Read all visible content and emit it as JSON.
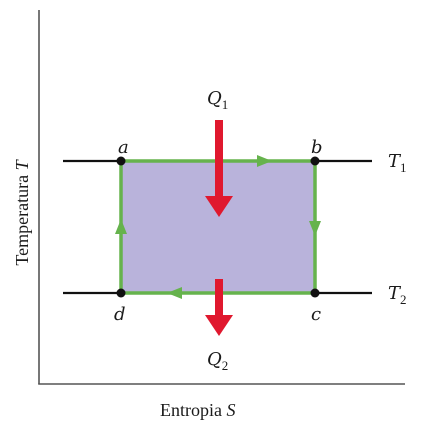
{
  "axes": {
    "x_title": "Entropia",
    "x_symbol": "S",
    "y_title": "Temperatura",
    "y_symbol": "T"
  },
  "points": {
    "a": "a",
    "b": "b",
    "c": "c",
    "d": "d"
  },
  "isotherms": {
    "upper_symbol": "T",
    "upper_sub": "1",
    "lower_symbol": "T",
    "lower_sub": "2"
  },
  "heat": {
    "in_symbol": "Q",
    "in_sub": "1",
    "out_symbol": "Q",
    "out_sub": "2"
  },
  "colors": {
    "cycle_fill": "#b9b3db",
    "cycle_edge": "#66b34d",
    "heat_arrow": "#e0182e",
    "axis": "#555555",
    "isotherm_line": "#111111"
  }
}
